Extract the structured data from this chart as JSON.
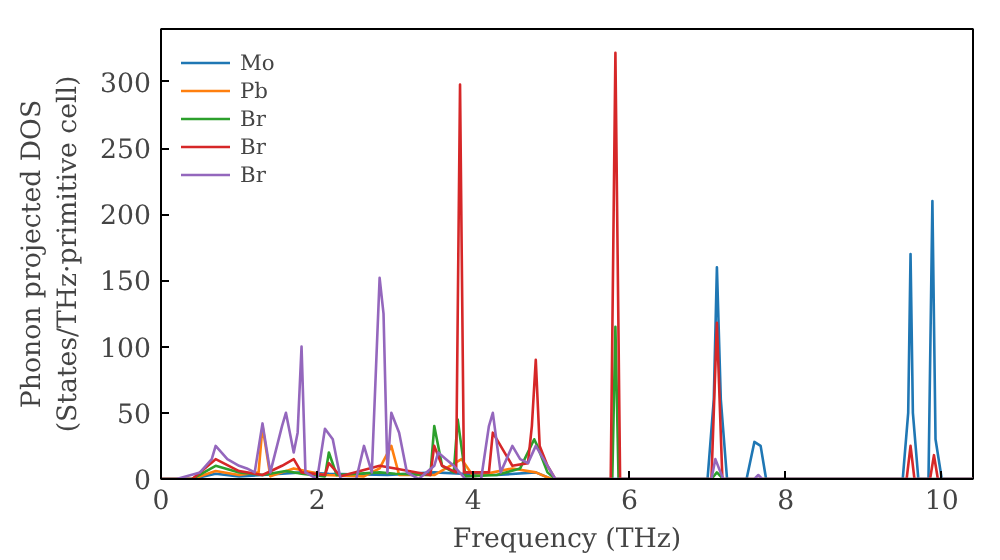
{
  "chart_data": {
    "type": "line",
    "xlabel": "Frequency (THz)",
    "ylabel": "Phonon projected DOS\n(States/THz·primitive cell)",
    "xlim": [
      0,
      10.4
    ],
    "ylim": [
      0,
      340
    ],
    "xticks": [
      0,
      2,
      4,
      6,
      8,
      10
    ],
    "yticks": [
      0,
      50,
      100,
      150,
      200,
      250,
      300
    ],
    "grid": false,
    "legend": "top left",
    "series": [
      {
        "name": "Mo",
        "color": "#1f77b4",
        "x": [
          0,
          0.4,
          0.7,
          1.0,
          1.3,
          1.8,
          2.15,
          2.9,
          3.5,
          3.85,
          4.3,
          4.8,
          5.0,
          5.8,
          7.0,
          7.08,
          7.12,
          7.17,
          7.25,
          7.5,
          7.6,
          7.68,
          7.75,
          9.5,
          9.57,
          9.6,
          9.63,
          9.7,
          9.83,
          9.88,
          9.92,
          10.0,
          10.4
        ],
        "values": [
          0,
          0,
          4,
          2,
          3,
          5,
          4,
          3,
          5,
          4,
          3,
          5,
          0,
          0,
          0,
          60,
          160,
          60,
          0,
          0,
          28,
          25,
          0,
          0,
          50,
          170,
          50,
          0,
          0,
          210,
          30,
          0,
          0
        ]
      },
      {
        "name": "Pb",
        "color": "#ff7f0e",
        "x": [
          0,
          0.4,
          0.7,
          1.0,
          1.25,
          1.3,
          1.4,
          1.55,
          1.7,
          2.1,
          2.6,
          2.8,
          2.95,
          3.05,
          3.5,
          3.85,
          4.0,
          4.5,
          4.8,
          5.0
        ],
        "values": [
          0,
          0,
          6,
          3,
          5,
          40,
          2,
          5,
          8,
          3,
          2,
          8,
          25,
          3,
          3,
          15,
          2,
          8,
          5,
          0
        ]
      },
      {
        "name": "Br",
        "color": "#2ca02c",
        "x": [
          0,
          0.4,
          0.7,
          1.0,
          1.3,
          1.6,
          1.8,
          2.1,
          2.15,
          2.25,
          2.8,
          3.0,
          3.45,
          3.5,
          3.6,
          3.75,
          3.8,
          3.9,
          4.3,
          4.6,
          4.78,
          4.82,
          4.95,
          5.05,
          5.78,
          5.82,
          5.86,
          7.05,
          7.12,
          7.2,
          10.4
        ],
        "values": [
          0,
          0,
          10,
          5,
          3,
          6,
          4,
          2,
          20,
          3,
          5,
          4,
          3,
          40,
          10,
          5,
          45,
          2,
          3,
          8,
          30,
          25,
          5,
          0,
          0,
          115,
          0,
          0,
          5,
          0,
          0
        ]
      },
      {
        "name": "Br",
        "color": "#d62728",
        "x": [
          0,
          0.4,
          0.7,
          1.0,
          1.3,
          1.55,
          1.7,
          1.8,
          2.1,
          2.15,
          2.3,
          2.8,
          3.0,
          3.45,
          3.5,
          3.6,
          3.78,
          3.83,
          3.88,
          4.2,
          4.25,
          4.5,
          4.7,
          4.75,
          4.8,
          4.85,
          4.95,
          5.05,
          5.76,
          5.82,
          5.88,
          7.05,
          7.12,
          7.19,
          9.55,
          9.6,
          9.65,
          9.85,
          9.9,
          9.95,
          10.4
        ],
        "values": [
          0,
          0,
          15,
          6,
          3,
          10,
          15,
          5,
          3,
          12,
          2,
          10,
          8,
          3,
          25,
          10,
          5,
          298,
          5,
          5,
          35,
          10,
          12,
          40,
          90,
          25,
          10,
          0,
          0,
          322,
          0,
          0,
          118,
          0,
          0,
          25,
          0,
          0,
          18,
          0,
          0
        ]
      },
      {
        "name": "Br",
        "color": "#9467bd",
        "x": [
          0,
          0.2,
          0.5,
          0.65,
          0.7,
          0.85,
          1.0,
          1.1,
          1.2,
          1.3,
          1.4,
          1.55,
          1.6,
          1.7,
          1.75,
          1.8,
          1.85,
          2.0,
          2.1,
          2.2,
          2.3,
          2.5,
          2.6,
          2.7,
          2.8,
          2.85,
          2.9,
          2.95,
          3.05,
          3.15,
          3.3,
          3.5,
          3.55,
          3.65,
          3.75,
          3.9,
          4.1,
          4.2,
          4.25,
          4.35,
          4.5,
          4.6,
          4.7,
          4.8,
          4.9,
          5.05,
          7.05,
          7.1,
          7.2,
          7.6,
          7.65,
          7.7,
          10.4
        ],
        "values": [
          0,
          0,
          5,
          15,
          25,
          15,
          10,
          8,
          5,
          42,
          5,
          40,
          50,
          20,
          35,
          100,
          5,
          0,
          38,
          30,
          0,
          0,
          25,
          5,
          152,
          125,
          5,
          50,
          35,
          5,
          0,
          10,
          20,
          15,
          10,
          0,
          0,
          40,
          50,
          5,
          25,
          15,
          12,
          25,
          15,
          0,
          0,
          15,
          0,
          0,
          3,
          0,
          0
        ]
      }
    ]
  }
}
